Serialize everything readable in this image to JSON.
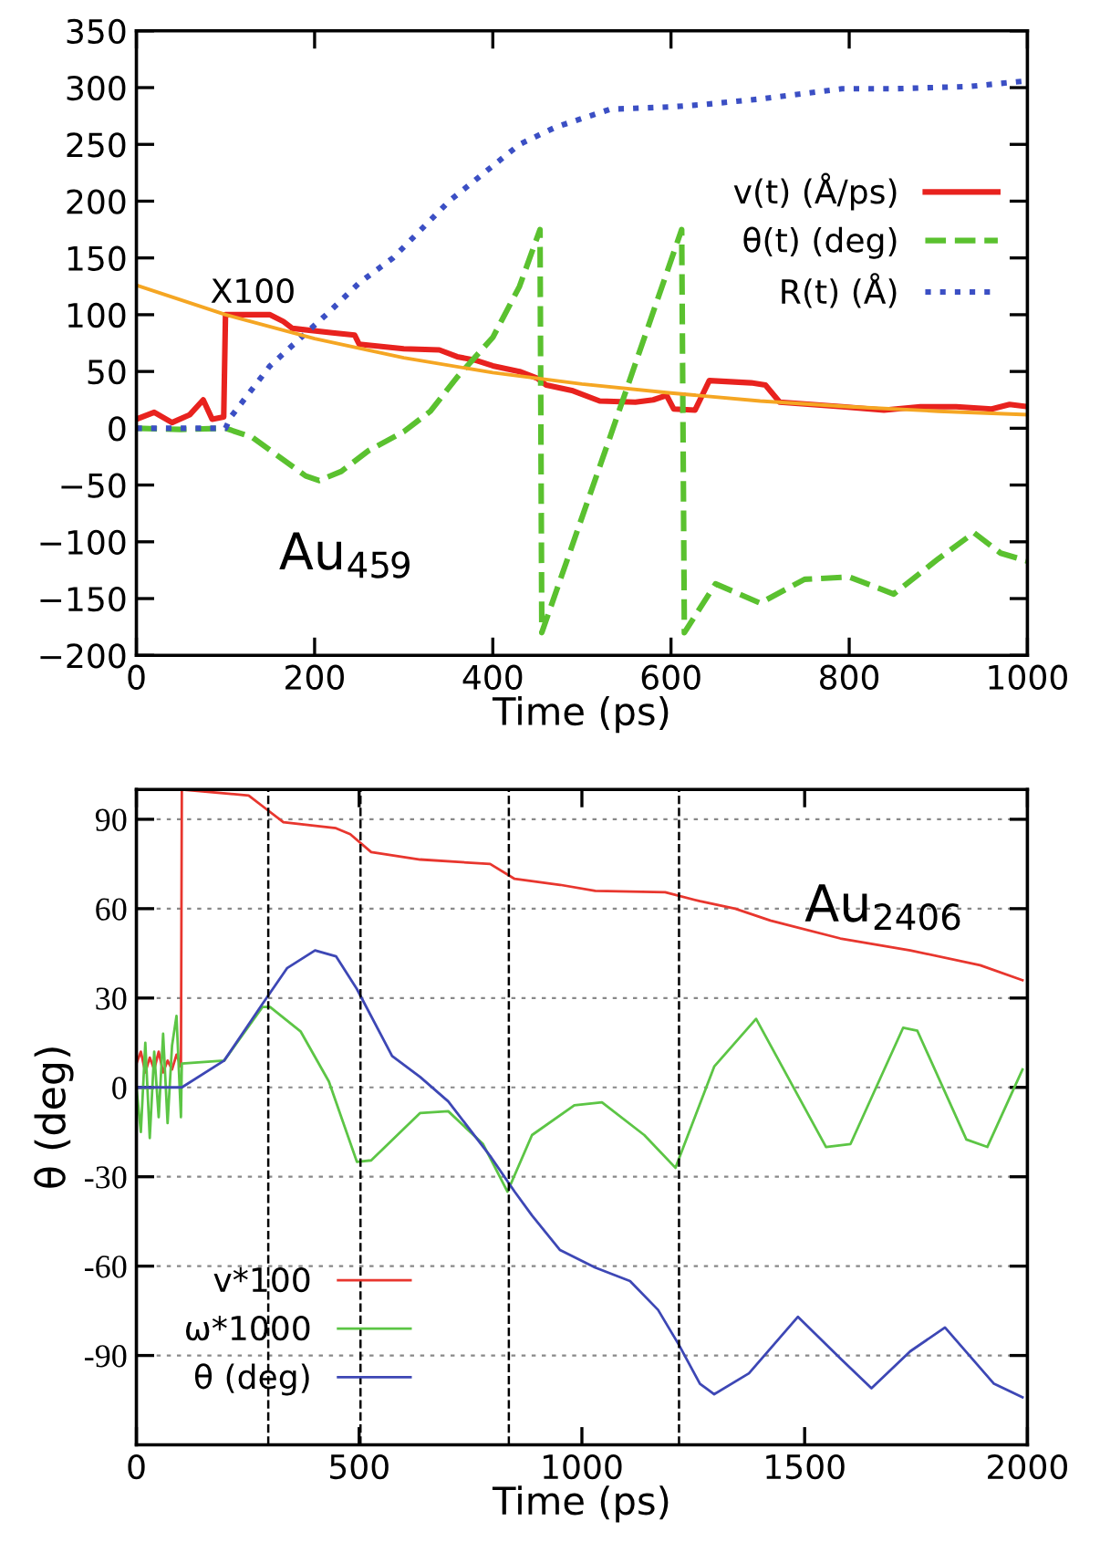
{
  "chart_data": [
    {
      "type": "line",
      "xlabel": "Time (ps)",
      "xlim": [
        0,
        1000
      ],
      "xticks": [
        0,
        200,
        400,
        600,
        800,
        1000
      ],
      "ylim": [
        -200,
        350
      ],
      "yticks": [
        {
          "value": -200,
          "label": "−200"
        },
        {
          "value": -150,
          "label": "−150"
        },
        {
          "value": -100,
          "label": "−100"
        },
        {
          "value": -50,
          "label": "−50"
        },
        0,
        50,
        100,
        150,
        200,
        250,
        300,
        350
      ],
      "grid": false,
      "legend": "top right",
      "annotations": [
        {
          "text": "X100",
          "x": 100,
          "y": 100
        },
        "Au$_{459}$"
      ],
      "series": [
        {
          "name": "v(t) (Å/ps)",
          "color": "#e8221e",
          "line_style": "solid",
          "x": [
            0,
            20,
            40,
            60,
            75,
            85,
            98,
            100,
            150,
            165,
            175,
            220,
            245,
            250,
            300,
            340,
            360,
            380,
            400,
            430,
            450,
            460,
            490,
            520,
            560,
            580,
            595,
            603,
            627,
            643,
            690,
            706,
            722,
            792,
            839,
            880,
            920,
            960,
            980,
            1000
          ],
          "values": [
            8,
            14,
            5,
            12,
            25,
            8,
            10,
            100,
            100,
            94,
            88,
            84,
            82,
            74,
            70,
            69,
            63,
            60,
            55,
            50,
            44,
            38,
            33,
            24,
            23,
            25,
            29,
            17,
            16,
            42,
            40,
            38,
            23,
            19,
            16,
            19,
            19,
            17,
            21,
            19
          ]
        },
        {
          "name": "θ(t) (deg)",
          "color": "#5ac12f",
          "line_style": "dashed",
          "x": [
            0,
            50,
            100,
            130,
            160,
            190,
            205,
            230,
            260,
            300,
            330,
            360,
            400,
            430,
            453,
            455,
            535,
            612,
            615,
            650,
            700,
            750,
            800,
            850,
            900,
            940,
            970,
            1000
          ],
          "values": [
            0,
            -1,
            0,
            -8,
            -25,
            -42,
            -46,
            -38,
            -20,
            -3,
            15,
            45,
            80,
            125,
            175,
            -180,
            0,
            175,
            -180,
            -137,
            -154,
            -133,
            -131,
            -146,
            -115,
            -92,
            -110,
            -117
          ]
        },
        {
          "name": "R(t) (Å)",
          "color": "#3b4fc4",
          "line_style": "dotted",
          "x": [
            0,
            100,
            106,
            150,
            213,
            250,
            288,
            351,
            430,
            470,
            532,
            600,
            635,
            700,
            792,
            850,
            935,
            1000
          ],
          "values": [
            0,
            0,
            10,
            55,
            100,
            128,
            150,
            200,
            250,
            265,
            281,
            283,
            285,
            290,
            299,
            299,
            301,
            306
          ]
        },
        {
          "color": "#f5a623",
          "line_style": "solid",
          "x": [
            0,
            100,
            200,
            300,
            400,
            500,
            600,
            700,
            800,
            900,
            1000
          ],
          "values": [
            126,
            100,
            79,
            62,
            49,
            39,
            31,
            24,
            19,
            15,
            12
          ]
        }
      ]
    },
    {
      "type": "line",
      "xlabel": "Time (ps)",
      "ylabel": "θ (deg)",
      "xlim": [
        0,
        2000
      ],
      "xticks": [
        0,
        500,
        1000,
        1500,
        2000
      ],
      "ylim": [
        -120,
        100
      ],
      "yticks": [
        {
          "value": -90,
          "label": "-90"
        },
        {
          "value": -60,
          "label": "-60"
        },
        {
          "value": -30,
          "label": "-30"
        },
        0,
        30,
        60,
        90
      ],
      "grid": "y",
      "legend": "bottom left",
      "annotations": [
        "Au$_{2406}$"
      ],
      "ref_lines": [
        {
          "axis": "x",
          "value": 296,
          "color": "#000000",
          "line_style": "dashed"
        },
        {
          "axis": "x",
          "value": 503,
          "color": "#000000",
          "line_style": "dashed"
        },
        {
          "axis": "x",
          "value": 836,
          "color": "#000000",
          "line_style": "dashed"
        },
        {
          "axis": "x",
          "value": 1218,
          "color": "#000000",
          "line_style": "dashed"
        }
      ],
      "series": [
        {
          "name": "v*100",
          "color": "#e8362e",
          "line_style": "solid",
          "x": [
            0,
            10,
            20,
            30,
            40,
            50,
            60,
            70,
            80,
            90,
            100,
            102,
            252,
            291,
            330,
            448,
            480,
            527,
            637,
            794,
            849,
            951,
            1030,
            1187,
            1265,
            1344,
            1423,
            1580,
            1737,
            1894,
            1989
          ],
          "values": [
            8,
            12,
            5,
            10,
            6,
            12,
            5,
            9,
            6,
            11,
            7,
            100,
            98,
            93.5,
            89,
            87,
            85,
            79,
            76.5,
            75,
            70,
            68,
            66,
            65.5,
            62.5,
            60,
            56,
            50,
            46,
            41,
            36
          ]
        },
        {
          "name": "ω*1000",
          "color": "#5cc545",
          "line_style": "solid",
          "x": [
            0,
            10,
            20,
            30,
            40,
            50,
            60,
            70,
            80,
            90,
            100,
            102,
            197,
            283,
            300,
            369,
            432,
            495,
            527,
            637,
            700,
            778,
            833,
            888,
            983,
            1045,
            1140,
            1210,
            1297,
            1391,
            1548,
            1603,
            1721,
            1753,
            1863,
            1910,
            1989
          ],
          "values": [
            0,
            -15,
            15,
            -17,
            12,
            -10,
            18,
            -12,
            14,
            24,
            -10,
            8,
            9,
            27,
            27,
            18.7,
            2,
            -25,
            -24.5,
            -8.6,
            -8,
            -19,
            -35,
            -16,
            -6,
            -5,
            -16,
            -27,
            7,
            23,
            -20,
            -19,
            20,
            19,
            -17.5,
            -20,
            6
          ]
        },
        {
          "name": "θ (deg)",
          "color": "#3d47b5",
          "line_style": "solid",
          "x": [
            0,
            50,
            102,
            197,
            283,
            338,
            401,
            448,
            495,
            574,
            637,
            700,
            794,
            849,
            888,
            951,
            1030,
            1108,
            1171,
            1218,
            1265,
            1297,
            1375,
            1485,
            1580,
            1650,
            1737,
            1815,
            1925,
            1989
          ],
          "values": [
            0,
            0,
            0,
            9,
            28,
            40,
            46,
            44,
            33,
            10.5,
            3.5,
            -4.7,
            -23,
            -35,
            -43,
            -54.6,
            -60.5,
            -65,
            -74.7,
            -86.5,
            -99.5,
            -103,
            -96,
            -77,
            -91,
            -101,
            -88.6,
            -80.6,
            -99.5,
            -104
          ]
        }
      ]
    }
  ]
}
